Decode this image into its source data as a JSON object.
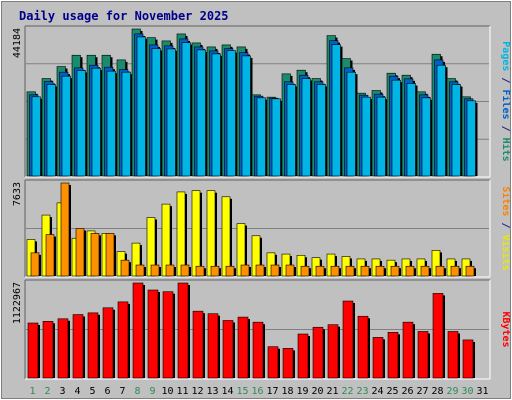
{
  "chart_data": {
    "type": "bar",
    "title": "Daily usage for November 2025",
    "categories": [
      "1",
      "2",
      "3",
      "4",
      "5",
      "6",
      "7",
      "8",
      "9",
      "10",
      "11",
      "12",
      "13",
      "14",
      "15",
      "16",
      "17",
      "18",
      "19",
      "20",
      "21",
      "22",
      "23",
      "24",
      "25",
      "26",
      "27",
      "28",
      "29",
      "30",
      "31"
    ],
    "weekend_days": [
      "1",
      "2",
      "8",
      "9",
      "15",
      "16",
      "22",
      "23",
      "29",
      "30"
    ],
    "panels": [
      {
        "id": "top",
        "max_label": "44184",
        "ymax": 44184,
        "ylabel_parts": [
          {
            "text": "Pages",
            "color": "#00b4e6"
          },
          {
            "text": " / ",
            "color": "#1e1e8c"
          },
          {
            "text": "Files",
            "color": "#0060c8"
          },
          {
            "text": " / ",
            "color": "#1e1e8c"
          },
          {
            "text": "Hits",
            "color": "#188c6c"
          }
        ],
        "series": [
          {
            "name": "Hits",
            "color": "#188c6c",
            "values": [
              25300,
              29300,
              32900,
              36300,
              36300,
              36300,
              34900,
              44184,
              41600,
              40600,
              42700,
              40000,
              38800,
              39400,
              38800,
              24400,
              23700,
              30700,
              31800,
              29300,
              42200,
              35300,
              24900,
              25700,
              30900,
              30300,
              25300,
              36600,
              29300,
              23800,
              0
            ]
          },
          {
            "name": "Files",
            "color": "#0060c8",
            "values": [
              24400,
              28400,
              31200,
              32500,
              33300,
              32700,
              32000,
              42700,
              39400,
              39100,
              41200,
              38800,
              37600,
              38300,
              37100,
              24000,
              23400,
              28300,
              30300,
              28300,
              40700,
              32500,
              24300,
              24600,
              30000,
              29200,
              24400,
              34900,
              28300,
              23200,
              0
            ]
          },
          {
            "name": "Pages",
            "color": "#00b4e6",
            "values": [
              23800,
              27500,
              30000,
              31700,
              32400,
              31500,
              31200,
              41800,
              38300,
              38200,
              40100,
              37900,
              36700,
              37700,
              36100,
              23500,
              23200,
              27500,
              29300,
              27500,
              39500,
              31200,
              23700,
              23700,
              28800,
              27800,
              23500,
              33300,
              27500,
              22600,
              0
            ]
          }
        ]
      },
      {
        "id": "middle",
        "max_label": "7633",
        "ymax": 7633,
        "ylabel_parts": [
          {
            "text": "Sites",
            "color": "#ff8000"
          },
          {
            "text": " / ",
            "color": "#1e1e8c"
          },
          {
            "text": "Visits",
            "color": "#e8e800"
          }
        ],
        "series": [
          {
            "name": "Visits",
            "color": "#ffff00",
            "values": [
              3000,
              5000,
              6000,
              3100,
              3700,
              3500,
              2000,
              2700,
              4800,
              5900,
              6900,
              7000,
              7000,
              6500,
              4300,
              3300,
              1900,
              1800,
              1700,
              1500,
              1800,
              1600,
              1400,
              1400,
              1300,
              1400,
              1400,
              2100,
              1400,
              1400,
              0
            ]
          },
          {
            "name": "Sites",
            "color": "#ff9000",
            "values": [
              1900,
              3400,
              7633,
              3900,
              3500,
              3500,
              1300,
              900,
              900,
              900,
              900,
              800,
              800,
              800,
              900,
              900,
              900,
              900,
              800,
              800,
              800,
              800,
              800,
              800,
              800,
              800,
              800,
              800,
              800,
              800,
              0
            ]
          }
        ]
      },
      {
        "id": "bottom",
        "max_label": "1122967",
        "ymax": 1122967,
        "ylabel_parts": [
          {
            "text": "KBytes",
            "color": "#ff0000"
          }
        ],
        "series": [
          {
            "name": "KBytes",
            "color": "#ff0000",
            "values": [
              650000,
              670000,
              700000,
              750000,
              770000,
              830000,
              900000,
              1122967,
              1040000,
              1020000,
              1122967,
              790000,
              760000,
              680000,
              720000,
              660000,
              370000,
              350000,
              520000,
              600000,
              630000,
              910000,
              730000,
              480000,
              540000,
              660000,
              550000,
              1000000,
              550000,
              450000,
              0
            ]
          }
        ]
      }
    ]
  }
}
